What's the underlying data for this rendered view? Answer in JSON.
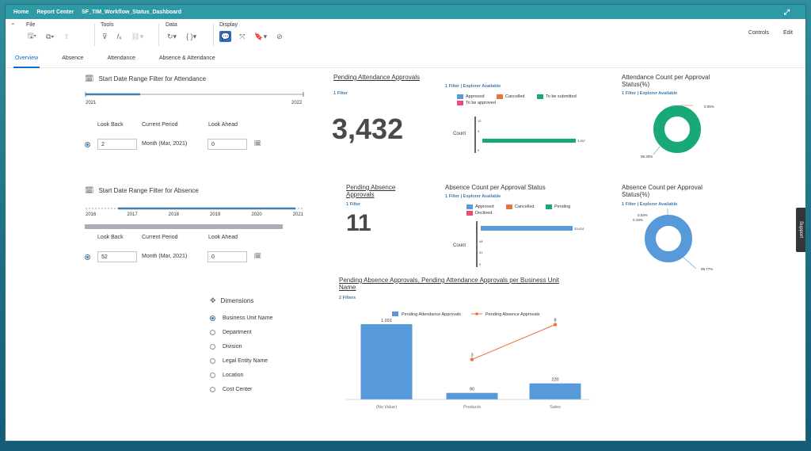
{
  "shell": {
    "breadcrumbs": [
      "Home",
      "Report Center",
      "SF_TIM_Workflow_Status_Dashboard"
    ]
  },
  "toolbar": {
    "groups": {
      "file": "File",
      "tools": "Tools",
      "data": "Data",
      "display": "Display"
    },
    "controls_label": "Controls",
    "edit_label": "Edit"
  },
  "tabs": [
    {
      "label": "Overview",
      "active": true
    },
    {
      "label": "Absence"
    },
    {
      "label": "Attendance"
    },
    {
      "label": "Absence & Attendance"
    }
  ],
  "attendance_filter": {
    "title": "Start Date Range Filter for Attendance",
    "range_start": "2021",
    "range_end": "2022",
    "look_back_label": "Look Back",
    "current_period_label": "Current Period",
    "look_ahead_label": "Look Ahead",
    "look_back_value": "2",
    "current_period_value": "Month (Mar, 2021)",
    "look_ahead_value": "0"
  },
  "absence_filter": {
    "title": "Start Date Range Filter for Absence",
    "years": [
      "2016",
      "2017",
      "2018",
      "2019",
      "2020",
      "2021"
    ],
    "look_back_label": "Look Back",
    "current_period_label": "Current Period",
    "look_ahead_label": "Look Ahead",
    "look_back_value": "52",
    "current_period_value": "Month (Mar, 2021)",
    "look_ahead_value": "0"
  },
  "pending_attendance": {
    "title": "Pending Attendance Approvals",
    "filter": "1 Filter",
    "value": "3,432"
  },
  "pending_absence": {
    "title": "Pending Absence Approvals",
    "filter": "1 Filter",
    "value": "11"
  },
  "attendance_status_chart": {
    "filter": "1 Filter",
    "explorer": "Explorer Available",
    "legend": [
      "Approved",
      "Cancelled",
      "To be submitted",
      "To be approved"
    ],
    "colors": {
      "approved": "#5899da",
      "cancelled": "#e8743b",
      "to_be_submitted": "#19a979",
      "to_be_approved": "#ed4a7b"
    },
    "ylabel": "Count",
    "axis_ticks": [
      "10",
      "3",
      "0"
    ],
    "bar_label": "3,457"
  },
  "absence_status_chart": {
    "title": "Absence Count per Approval Status",
    "filter": "1 Filter",
    "explorer": "Explorer Available",
    "legend": [
      "Approved",
      "Cancelled",
      "Pending",
      "Declined"
    ],
    "ylabel": "Count",
    "axis_ticks": [
      "44",
      "31",
      "0"
    ],
    "bar_label": "33,624"
  },
  "attendance_donut": {
    "title": "Attendance Count per Approval Status(%)",
    "filter": "1 Filter",
    "explorer": "Explorer Available",
    "slices": [
      {
        "label": "0.05%",
        "value": 0.05
      },
      {
        "label": "99.30%",
        "value": 99.3
      }
    ],
    "color": "#19a979"
  },
  "absence_donut": {
    "title": "Absence Count per Approval Status(%)",
    "filter": "1 Filter",
    "explorer": "Explorer Available",
    "slices": [
      {
        "label": "0.03%",
        "value": 0.03
      },
      {
        "label": "0.19%",
        "value": 0.19
      },
      {
        "label": "99.77%",
        "value": 99.77
      }
    ],
    "color": "#5899da"
  },
  "dimensions": {
    "title": "Dimensions",
    "items": [
      {
        "label": "Business Unit Name",
        "selected": true
      },
      {
        "label": "Department"
      },
      {
        "label": "Division"
      },
      {
        "label": "Legal Entity Name"
      },
      {
        "label": "Location"
      },
      {
        "label": "Cost Center"
      }
    ]
  },
  "combo_chart": {
    "title": "Pending Absence Approvals, Pending Attendance Approvals per Business Unit Name",
    "filter": "2 Filters"
  },
  "chart_data": {
    "type": "bar",
    "title": "Pending Absence Approvals, Pending Attendance Approvals per Business Unit Name",
    "categories": [
      "(No Value)",
      "Products",
      "Sales"
    ],
    "series": [
      {
        "name": "Pending Attendance Approvals",
        "type": "bar",
        "values": [
          1031,
          90,
          220
        ],
        "labels": [
          "1,031",
          "90",
          "220"
        ],
        "color": "#5899da"
      },
      {
        "name": "Pending Absence Approvals",
        "type": "line",
        "values": [
          null,
          3,
          8
        ],
        "labels": [
          "",
          "3",
          "8"
        ],
        "color": "#e8743b"
      }
    ],
    "legend": "top"
  },
  "support_label": "Support"
}
